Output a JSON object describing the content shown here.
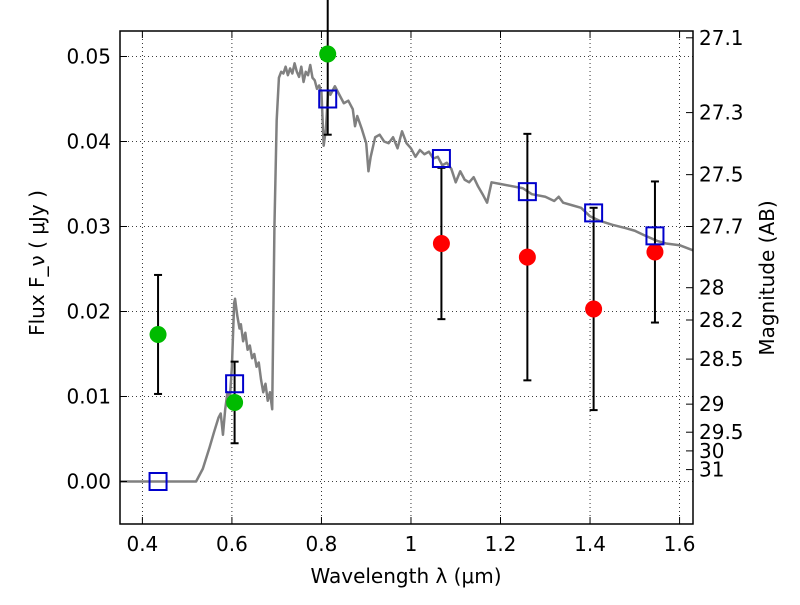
{
  "chart_data": {
    "type": "scatter",
    "xlabel": "Wavelength λ (μm)",
    "ylabel": "Flux F_ν ( μJy )",
    "ylabel_right": "Magnitude (AB)",
    "xlim": [
      0.35,
      1.63
    ],
    "ylim": [
      -0.005,
      0.053
    ],
    "x_ticks": [
      0.4,
      0.6,
      0.8,
      1.0,
      1.2,
      1.4,
      1.6
    ],
    "x_tick_labels": [
      "0.4",
      "0.6",
      "0.8",
      "1",
      "1.2",
      "1.4",
      "1.6"
    ],
    "y_ticks": [
      0.0,
      0.01,
      0.02,
      0.03,
      0.04,
      0.05
    ],
    "y_tick_labels": [
      "0.00",
      "0.01",
      "0.02",
      "0.03",
      "0.04",
      "0.05"
    ],
    "right_ticks": [
      {
        "label": "27.1",
        "flux": 0.0522
      },
      {
        "label": "27.3",
        "flux": 0.0434
      },
      {
        "label": "27.5",
        "flux": 0.0361
      },
      {
        "label": "27.7",
        "flux": 0.03
      },
      {
        "label": "28",
        "flux": 0.0228
      },
      {
        "label": "28.2",
        "flux": 0.019
      },
      {
        "label": "28.5",
        "flux": 0.0144
      },
      {
        "label": "29",
        "flux": 0.0091
      },
      {
        "label": "29.5",
        "flux": 0.0058
      },
      {
        "label": "30",
        "flux": 0.0036
      },
      {
        "label": "31",
        "flux": 0.0014
      }
    ],
    "grid": true,
    "model_curve": {
      "color": "#808080",
      "points": [
        [
          0.35,
          0.0
        ],
        [
          0.52,
          0.0
        ],
        [
          0.535,
          0.0015
        ],
        [
          0.55,
          0.004
        ],
        [
          0.56,
          0.0058
        ],
        [
          0.57,
          0.0075
        ],
        [
          0.575,
          0.008
        ],
        [
          0.58,
          0.0055
        ],
        [
          0.585,
          0.0085
        ],
        [
          0.59,
          0.0105
        ],
        [
          0.595,
          0.0095
        ],
        [
          0.6,
          0.0135
        ],
        [
          0.605,
          0.021
        ],
        [
          0.607,
          0.0215
        ],
        [
          0.612,
          0.0195
        ],
        [
          0.617,
          0.018
        ],
        [
          0.62,
          0.0185
        ],
        [
          0.625,
          0.0165
        ],
        [
          0.63,
          0.0175
        ],
        [
          0.635,
          0.0155
        ],
        [
          0.64,
          0.016
        ],
        [
          0.645,
          0.0145
        ],
        [
          0.65,
          0.015
        ],
        [
          0.655,
          0.0135
        ],
        [
          0.66,
          0.014
        ],
        [
          0.665,
          0.012
        ],
        [
          0.67,
          0.0105
        ],
        [
          0.675,
          0.0115
        ],
        [
          0.68,
          0.0095
        ],
        [
          0.685,
          0.0105
        ],
        [
          0.69,
          0.0085
        ],
        [
          0.695,
          0.03
        ],
        [
          0.7,
          0.0425
        ],
        [
          0.705,
          0.0475
        ],
        [
          0.71,
          0.0482
        ],
        [
          0.715,
          0.048
        ],
        [
          0.72,
          0.0488
        ],
        [
          0.725,
          0.0478
        ],
        [
          0.73,
          0.0486
        ],
        [
          0.735,
          0.048
        ],
        [
          0.74,
          0.0492
        ],
        [
          0.745,
          0.0482
        ],
        [
          0.75,
          0.0476
        ],
        [
          0.755,
          0.0488
        ],
        [
          0.76,
          0.047
        ],
        [
          0.765,
          0.0482
        ],
        [
          0.77,
          0.0478
        ],
        [
          0.775,
          0.049
        ],
        [
          0.78,
          0.0475
        ],
        [
          0.785,
          0.0472
        ],
        [
          0.79,
          0.0462
        ],
        [
          0.795,
          0.0466
        ],
        [
          0.8,
          0.0458
        ],
        [
          0.805,
          0.0395
        ],
        [
          0.81,
          0.0415
        ],
        [
          0.815,
          0.046
        ],
        [
          0.82,
          0.0455
        ],
        [
          0.83,
          0.0465
        ],
        [
          0.84,
          0.0455
        ],
        [
          0.85,
          0.0445
        ],
        [
          0.86,
          0.0448
        ],
        [
          0.87,
          0.0438
        ],
        [
          0.875,
          0.0418
        ],
        [
          0.88,
          0.043
        ],
        [
          0.89,
          0.0415
        ],
        [
          0.9,
          0.0398
        ],
        [
          0.905,
          0.0365
        ],
        [
          0.91,
          0.0382
        ],
        [
          0.92,
          0.0405
        ],
        [
          0.93,
          0.0408
        ],
        [
          0.94,
          0.04
        ],
        [
          0.95,
          0.0398
        ],
        [
          0.96,
          0.0405
        ],
        [
          0.97,
          0.0392
        ],
        [
          0.98,
          0.0412
        ],
        [
          0.99,
          0.0398
        ],
        [
          1.0,
          0.0392
        ],
        [
          1.01,
          0.0382
        ],
        [
          1.02,
          0.039
        ],
        [
          1.03,
          0.0385
        ],
        [
          1.04,
          0.0388
        ],
        [
          1.05,
          0.038
        ],
        [
          1.06,
          0.0382
        ],
        [
          1.07,
          0.0372
        ],
        [
          1.08,
          0.0375
        ],
        [
          1.09,
          0.0368
        ],
        [
          1.1,
          0.0352
        ],
        [
          1.11,
          0.0365
        ],
        [
          1.12,
          0.0355
        ],
        [
          1.13,
          0.0352
        ],
        [
          1.14,
          0.0358
        ],
        [
          1.15,
          0.0347
        ],
        [
          1.16,
          0.0338
        ],
        [
          1.17,
          0.0328
        ],
        [
          1.18,
          0.0352
        ],
        [
          1.2,
          0.035
        ],
        [
          1.22,
          0.0348
        ],
        [
          1.25,
          0.0345
        ],
        [
          1.27,
          0.0338
        ],
        [
          1.3,
          0.0335
        ],
        [
          1.32,
          0.033
        ],
        [
          1.33,
          0.0335
        ],
        [
          1.34,
          0.0328
        ],
        [
          1.36,
          0.0325
        ],
        [
          1.38,
          0.0322
        ],
        [
          1.4,
          0.0312
        ],
        [
          1.42,
          0.0307
        ],
        [
          1.45,
          0.0302
        ],
        [
          1.48,
          0.0298
        ],
        [
          1.5,
          0.0295
        ],
        [
          1.52,
          0.029
        ],
        [
          1.55,
          0.0283
        ],
        [
          1.57,
          0.028
        ],
        [
          1.6,
          0.0278
        ],
        [
          1.63,
          0.0272
        ]
      ]
    },
    "series": [
      {
        "marker": "circle",
        "color": "#00bb00",
        "points": [
          {
            "x": 0.435,
            "y": 0.0173,
            "err": 0.007
          },
          {
            "x": 0.606,
            "y": 0.0093,
            "err": 0.0048
          },
          {
            "x": 0.814,
            "y": 0.0503,
            "err": 0.0095
          }
        ]
      },
      {
        "marker": "circle",
        "color": "#ff0000",
        "points": [
          {
            "x": 1.068,
            "y": 0.028,
            "err": 0.0089
          },
          {
            "x": 1.26,
            "y": 0.0264,
            "err": 0.0145
          },
          {
            "x": 1.408,
            "y": 0.0203,
            "err": 0.0119
          },
          {
            "x": 1.545,
            "y": 0.027,
            "err": 0.0083
          }
        ]
      },
      {
        "marker": "square",
        "color": "#0000cc",
        "points": [
          {
            "x": 0.435,
            "y": 0.0
          },
          {
            "x": 0.606,
            "y": 0.0115
          },
          {
            "x": 0.814,
            "y": 0.045
          },
          {
            "x": 1.068,
            "y": 0.038
          },
          {
            "x": 1.26,
            "y": 0.0341
          },
          {
            "x": 1.408,
            "y": 0.0316
          },
          {
            "x": 1.545,
            "y": 0.0289
          }
        ]
      }
    ]
  }
}
